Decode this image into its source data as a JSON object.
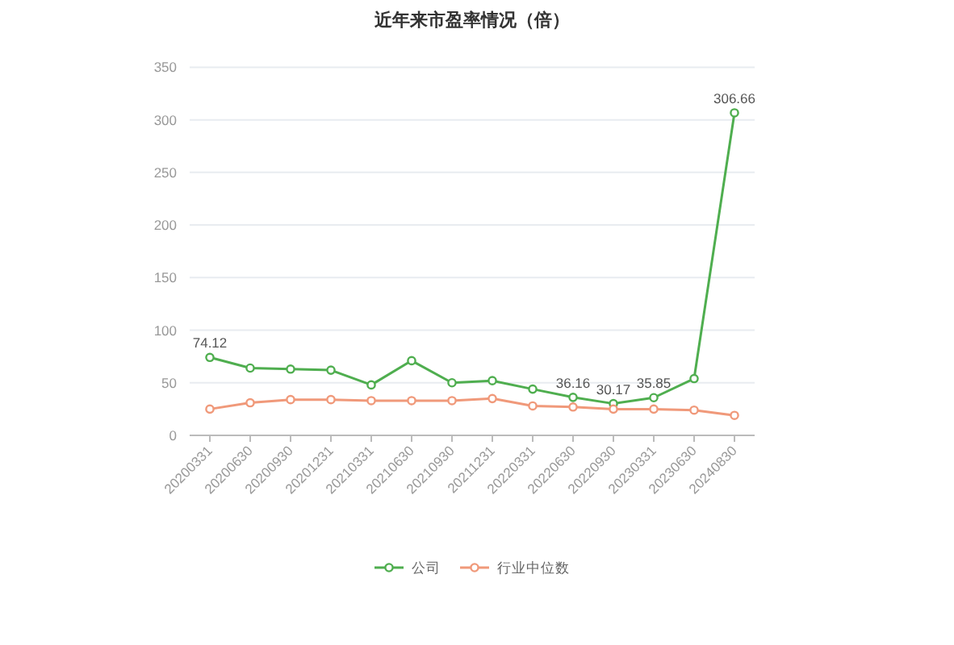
{
  "chart_data": {
    "type": "line",
    "title": "近年来市盈率情况（倍）",
    "categories": [
      "20200331",
      "20200630",
      "20200930",
      "20201231",
      "20210331",
      "20210630",
      "20210930",
      "20211231",
      "20220331",
      "20220630",
      "20220930",
      "20230331",
      "20230630",
      "20240830"
    ],
    "series": [
      {
        "name": "公司",
        "color": "#4fae4f",
        "values": [
          74.12,
          64,
          63,
          62,
          48,
          71,
          50,
          52,
          44,
          36.16,
          30.17,
          35.85,
          54,
          306.66
        ],
        "value_labels": [
          "74.12",
          null,
          null,
          null,
          null,
          null,
          null,
          null,
          null,
          "36.16",
          "30.17",
          "35.85",
          null,
          "306.66"
        ]
      },
      {
        "name": "行业中位数",
        "color": "#f0997a",
        "values": [
          25,
          31,
          34,
          34,
          33,
          33,
          33,
          35,
          28,
          27,
          25,
          25,
          24,
          19
        ]
      }
    ],
    "ylim": [
      0,
      350
    ],
    "yticks": [
      0,
      50,
      100,
      150,
      200,
      250,
      300,
      350
    ],
    "grid": "y",
    "legend": "bottom",
    "marker": "circle"
  }
}
